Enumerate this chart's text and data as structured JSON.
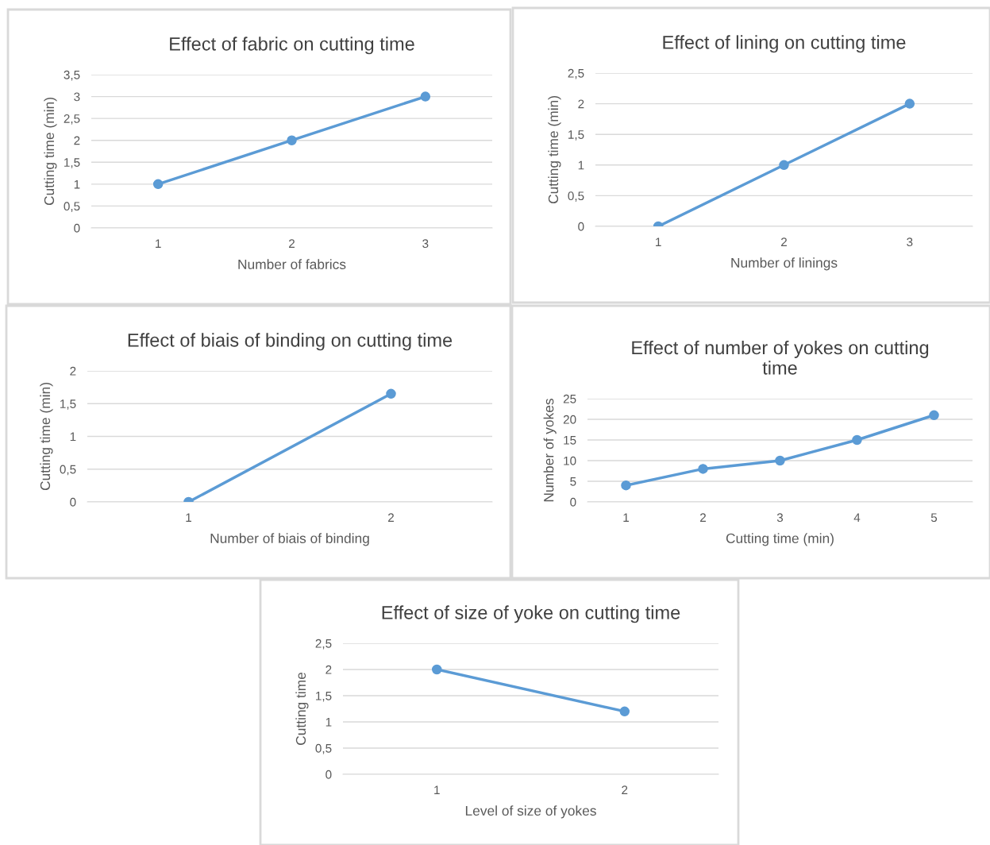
{
  "chart_data": [
    {
      "type": "line",
      "title": "Effect of fabric on cutting time",
      "xlabel": "Number of fabrics",
      "ylabel": "Cutting time (min)",
      "categories": [
        "1",
        "2",
        "3"
      ],
      "series": [
        {
          "color": "#5b9bd5",
          "values": [
            1,
            2,
            3
          ]
        }
      ],
      "ylim": [
        0,
        3.5
      ],
      "yticks": [
        0,
        {
          "value": 0.5,
          "label": "0,5"
        },
        1,
        {
          "value": 1.5,
          "label": "1,5"
        },
        2,
        {
          "value": 2.5,
          "label": "2,5"
        },
        3,
        {
          "value": 3.5,
          "label": "3,5"
        }
      ],
      "grid": "y",
      "marker": "circle",
      "line_style": "solid"
    },
    {
      "type": "line",
      "title": "Effect of lining on cutting time",
      "xlabel": "Number of linings",
      "ylabel": "Cutting time (min)",
      "categories": [
        "1",
        "2",
        "3"
      ],
      "series": [
        {
          "color": "#5b9bd5",
          "values": [
            0,
            1,
            2
          ]
        }
      ],
      "ylim": [
        0,
        2.5
      ],
      "yticks": [
        0,
        {
          "value": 0.5,
          "label": "0,5"
        },
        1,
        {
          "value": 1.5,
          "label": "1,5"
        },
        2,
        {
          "value": 2.5,
          "label": "2,5"
        }
      ],
      "grid": "y",
      "marker": "circle",
      "line_style": "solid"
    },
    {
      "type": "line",
      "title": "Effect of biais of binding on cutting time",
      "xlabel": "Number of biais of binding",
      "ylabel": "Cutting time (min)",
      "categories": [
        "1",
        "2"
      ],
      "series": [
        {
          "color": "#5b9bd5",
          "values": [
            0,
            1.65
          ]
        }
      ],
      "ylim": [
        0,
        2
      ],
      "yticks": [
        0,
        {
          "value": 0.5,
          "label": "0,5"
        },
        1,
        {
          "value": 1.5,
          "label": "1,5"
        },
        2
      ],
      "grid": "y",
      "marker": "circle",
      "line_style": "solid"
    },
    {
      "type": "line",
      "title": "Effect of number of yokes on cutting time",
      "xlabel": "Cutting time (min)",
      "ylabel": "Number of yokes",
      "categories": [
        "1",
        "2",
        "3",
        "4",
        "5"
      ],
      "series": [
        {
          "color": "#5b9bd5",
          "values": [
            4,
            8,
            10,
            15,
            21
          ]
        }
      ],
      "ylim": [
        0,
        25
      ],
      "yticks": [
        0,
        5,
        10,
        15,
        20,
        25
      ],
      "grid": "y",
      "marker": "circle",
      "line_style": "solid"
    },
    {
      "type": "line",
      "title": "Effect of size of yoke on cutting time",
      "xlabel": "Level of size of yokes",
      "ylabel": "Cutting time",
      "categories": [
        "1",
        "2"
      ],
      "series": [
        {
          "color": "#5b9bd5",
          "values": [
            2,
            1.2
          ]
        }
      ],
      "ylim": [
        0,
        2.5
      ],
      "yticks": [
        0,
        {
          "value": 0.5,
          "label": "0,5"
        },
        1,
        {
          "value": 1.5,
          "label": "1,5"
        },
        2,
        {
          "value": 2.5,
          "label": "2,5"
        }
      ],
      "grid": "y",
      "marker": "circle",
      "line_style": "solid"
    }
  ]
}
